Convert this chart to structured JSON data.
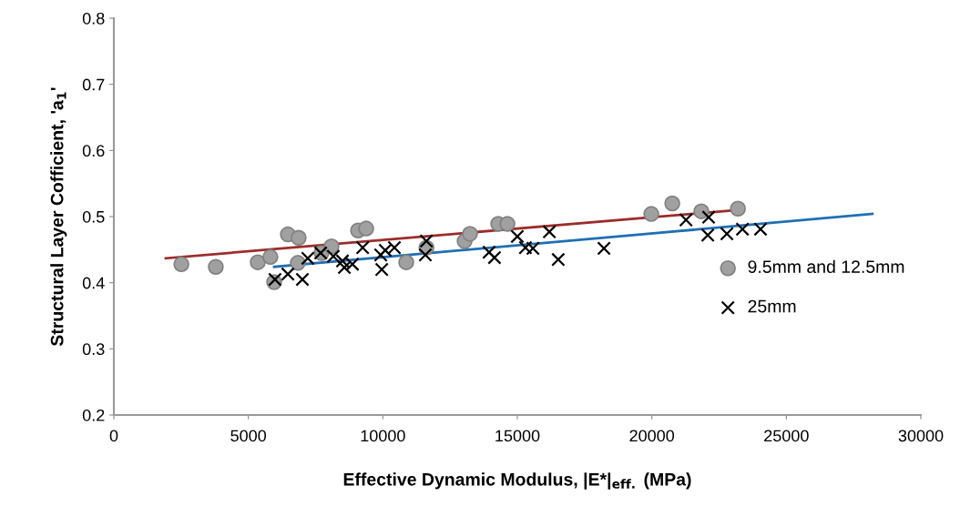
{
  "chart_data": {
    "type": "scatter",
    "xlabel": "Effective Dynamic Modulus, |E*|$_{eff.}$ (MPa)",
    "ylabel": "Structural Layer Cofficient, 'a$_{1}$'",
    "xlim": [
      0,
      30000
    ],
    "ylim": [
      0.2,
      0.8
    ],
    "xticks": [
      0,
      5000,
      10000,
      15000,
      20000,
      25000,
      30000
    ],
    "yticks": [
      0.2,
      0.3,
      0.4,
      0.5,
      0.6,
      0.7,
      0.8
    ],
    "grid": false,
    "legend": "right",
    "series": [
      {
        "name": "9.5mm and 12.5mm",
        "marker": "circle",
        "color": "#a0a0a0",
        "x": [
          2510,
          3790,
          5350,
          5820,
          5960,
          6470,
          6870,
          6840,
          7720,
          8090,
          9080,
          9380,
          10870,
          11620,
          13040,
          13240,
          14290,
          14630,
          19980,
          20760,
          21840,
          23200
        ],
        "values": [
          0.428,
          0.424,
          0.431,
          0.439,
          0.401,
          0.473,
          0.468,
          0.43,
          0.445,
          0.455,
          0.479,
          0.482,
          0.431,
          0.453,
          0.463,
          0.474,
          0.489,
          0.489,
          0.504,
          0.52,
          0.508,
          0.512
        ]
      },
      {
        "name": "25mm",
        "marker": "cross",
        "color": "#000000",
        "x": [
          5990,
          6470,
          7010,
          7210,
          7690,
          8160,
          8500,
          8570,
          8870,
          9250,
          9920,
          9960,
          10090,
          10430,
          11620,
          11580,
          13950,
          14150,
          15000,
          15300,
          15580,
          16190,
          16520,
          18220,
          21270,
          22110,
          22080,
          22790,
          23370,
          24040
        ],
        "values": [
          0.405,
          0.413,
          0.405,
          0.437,
          0.445,
          0.44,
          0.433,
          0.423,
          0.428,
          0.453,
          0.442,
          0.42,
          0.449,
          0.453,
          0.463,
          0.442,
          0.446,
          0.438,
          0.47,
          0.453,
          0.452,
          0.477,
          0.435,
          0.452,
          0.495,
          0.499,
          0.472,
          0.474,
          0.481,
          0.481
        ]
      },
      {
        "type": "line",
        "marker": "none",
        "line_style": "solid",
        "color": "#9b2d2a",
        "x": [
          1930,
          23200
        ],
        "values": [
          0.437,
          0.51
        ]
      },
      {
        "type": "line",
        "marker": "none",
        "line_style": "solid",
        "color": "#1f6fb4",
        "x": [
          5960,
          28200
        ],
        "values": [
          0.424,
          0.504
        ]
      }
    ]
  }
}
